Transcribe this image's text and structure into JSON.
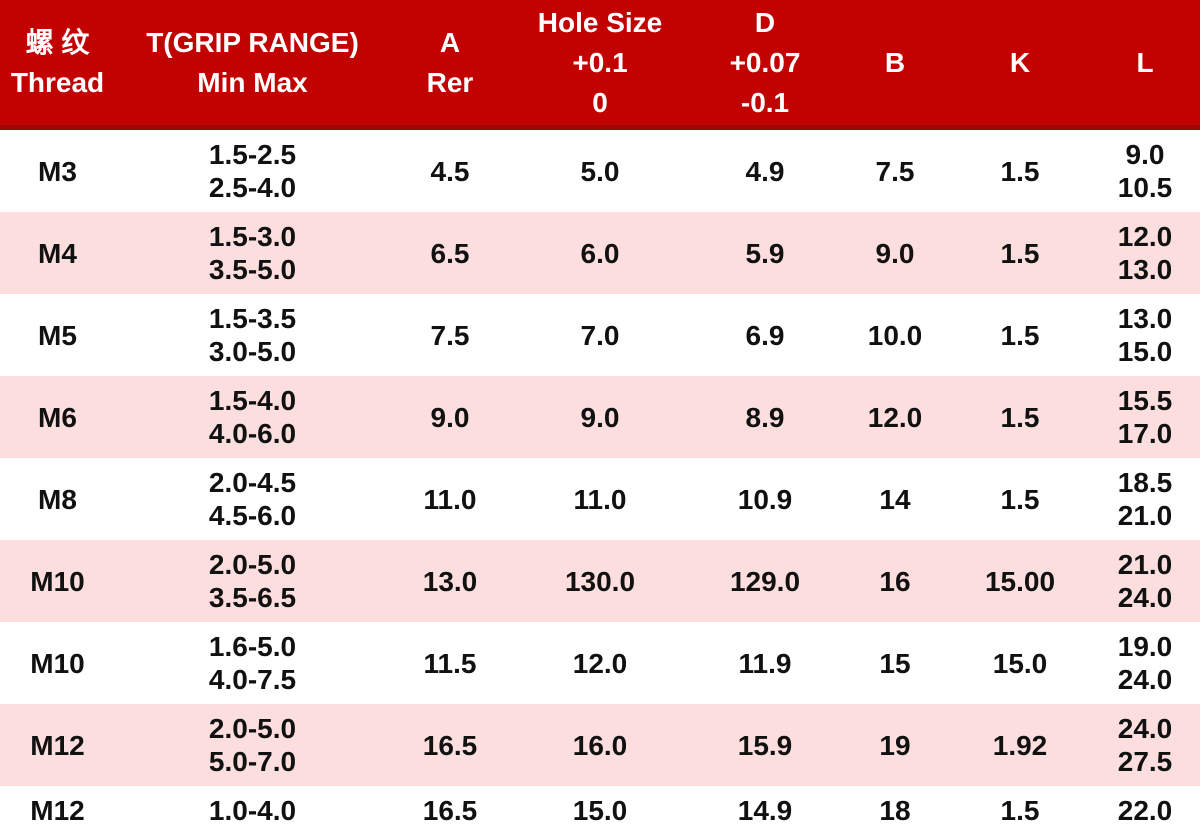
{
  "colors": {
    "header_bg": "#C20101",
    "header_border": "#A00404",
    "header_text": "#FFFFFF",
    "row_bg": "#FFFFFF",
    "row_alt_bg": "#FDDEDE",
    "body_text": "#111111"
  },
  "table": {
    "header": {
      "columns": [
        {
          "id": "thread",
          "lines": [
            "螺 纹",
            "Thread"
          ]
        },
        {
          "id": "grip",
          "lines": [
            "T(GRIP RANGE)",
            "Min Max"
          ]
        },
        {
          "id": "a",
          "lines": [
            "A",
            "Rer"
          ]
        },
        {
          "id": "hole",
          "lines": [
            "Hole Size",
            "+0.1",
            "0"
          ]
        },
        {
          "id": "d",
          "lines": [
            "D",
            "+0.07",
            "-0.1"
          ]
        },
        {
          "id": "b",
          "lines": [
            "B"
          ]
        },
        {
          "id": "k",
          "lines": [
            "K"
          ]
        },
        {
          "id": "l",
          "lines": [
            "L"
          ]
        }
      ]
    },
    "rows": [
      {
        "thread": "M3",
        "grip": [
          "1.5-2.5",
          "2.5-4.0"
        ],
        "a": "4.5",
        "hole": "5.0",
        "d": "4.9",
        "b": "7.5",
        "k": "1.5",
        "l": [
          "9.0",
          "10.5"
        ]
      },
      {
        "thread": "M4",
        "grip": [
          "1.5-3.0",
          "3.5-5.0"
        ],
        "a": "6.5",
        "hole": "6.0",
        "d": "5.9",
        "b": "9.0",
        "k": "1.5",
        "l": [
          "12.0",
          "13.0"
        ]
      },
      {
        "thread": "M5",
        "grip": [
          "1.5-3.5",
          "3.0-5.0"
        ],
        "a": "7.5",
        "hole": "7.0",
        "d": "6.9",
        "b": "10.0",
        "k": "1.5",
        "l": [
          "13.0",
          "15.0"
        ]
      },
      {
        "thread": "M6",
        "grip": [
          "1.5-4.0",
          "4.0-6.0"
        ],
        "a": "9.0",
        "hole": "9.0",
        "d": "8.9",
        "b": "12.0",
        "k": "1.5",
        "l": [
          "15.5",
          "17.0"
        ]
      },
      {
        "thread": "M8",
        "grip": [
          "2.0-4.5",
          "4.5-6.0"
        ],
        "a": "11.0",
        "hole": "11.0",
        "d": "10.9",
        "b": "14",
        "k": "1.5",
        "l": [
          "18.5",
          "21.0"
        ]
      },
      {
        "thread": "M10",
        "grip": [
          "2.0-5.0",
          "3.5-6.5"
        ],
        "a": "13.0",
        "hole": "130.0",
        "d": "129.0",
        "b": "16",
        "k": "15.00",
        "l": [
          "21.0",
          "24.0"
        ]
      },
      {
        "thread": "M10",
        "grip": [
          "1.6-5.0",
          "4.0-7.5"
        ],
        "a": "11.5",
        "hole": "12.0",
        "d": "11.9",
        "b": "15",
        "k": "15.0",
        "l": [
          "19.0",
          "24.0"
        ]
      },
      {
        "thread": "M12",
        "grip": [
          "2.0-5.0",
          "5.0-7.0"
        ],
        "a": "16.5",
        "hole": "16.0",
        "d": "15.9",
        "b": "19",
        "k": "1.92",
        "l": [
          "24.0",
          "27.5"
        ]
      },
      {
        "thread": "M12",
        "grip": [
          "1.0-4.0"
        ],
        "a": "16.5",
        "hole": "15.0",
        "d": "14.9",
        "b": "18",
        "k": "1.5",
        "l": [
          "22.0"
        ]
      }
    ]
  }
}
